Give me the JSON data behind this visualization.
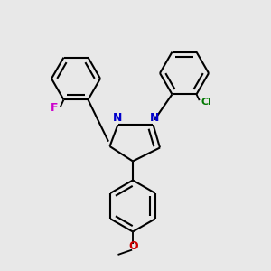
{
  "bg_color": "#e8e8e8",
  "bond_color": "#000000",
  "bond_width": 1.5,
  "N_color": "#0000cc",
  "F_color": "#cc00cc",
  "Cl_color": "#007700",
  "O_color": "#cc0000",
  "figsize": [
    3.0,
    3.0
  ],
  "dpi": 100,
  "xlim": [
    0.0,
    1.0
  ],
  "ylim": [
    0.05,
    1.05
  ]
}
